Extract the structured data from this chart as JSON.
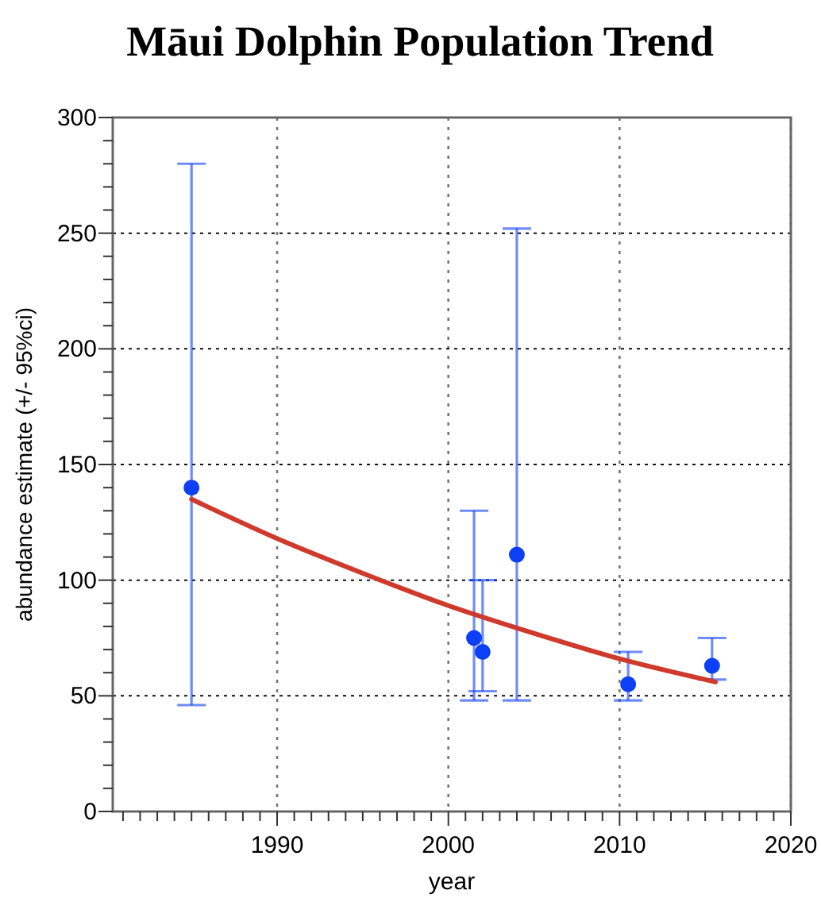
{
  "chart_data": {
    "type": "scatter",
    "title": "Māui Dolphin Population Trend",
    "xlabel": "year",
    "ylabel": "abundance estimate (+/- 95%ci)",
    "xlim": [
      1980.4,
      2020
    ],
    "ylim": [
      0,
      300
    ],
    "xticks": [
      {
        "value": 1981,
        "label": null
      },
      {
        "value": 1982,
        "label": null
      },
      {
        "value": 1983,
        "label": null
      },
      {
        "value": 1984,
        "label": null
      },
      {
        "value": 1985,
        "label": null
      },
      {
        "value": 1986,
        "label": null
      },
      {
        "value": 1987,
        "label": null
      },
      {
        "value": 1988,
        "label": null
      },
      {
        "value": 1989,
        "label": null
      },
      1990,
      {
        "value": 1991,
        "label": null
      },
      {
        "value": 1992,
        "label": null
      },
      {
        "value": 1993,
        "label": null
      },
      {
        "value": 1994,
        "label": null
      },
      {
        "value": 1995,
        "label": null
      },
      {
        "value": 1996,
        "label": null
      },
      {
        "value": 1997,
        "label": null
      },
      {
        "value": 1998,
        "label": null
      },
      {
        "value": 1999,
        "label": null
      },
      2000,
      {
        "value": 2001,
        "label": null
      },
      {
        "value": 2002,
        "label": null
      },
      {
        "value": 2003,
        "label": null
      },
      {
        "value": 2004,
        "label": null
      },
      {
        "value": 2005,
        "label": null
      },
      {
        "value": 2006,
        "label": null
      },
      {
        "value": 2007,
        "label": null
      },
      {
        "value": 2008,
        "label": null
      },
      {
        "value": 2009,
        "label": null
      },
      2010,
      {
        "value": 2011,
        "label": null
      },
      {
        "value": 2012,
        "label": null
      },
      {
        "value": 2013,
        "label": null
      },
      {
        "value": 2014,
        "label": null
      },
      {
        "value": 2015,
        "label": null
      },
      {
        "value": 2016,
        "label": null
      },
      {
        "value": 2017,
        "label": null
      },
      {
        "value": 2018,
        "label": null
      },
      {
        "value": 2019,
        "label": null
      },
      2020
    ],
    "yticks": [
      0,
      {
        "value": 10,
        "label": null
      },
      {
        "value": 20,
        "label": null
      },
      {
        "value": 30,
        "label": null
      },
      {
        "value": 40,
        "label": null
      },
      50,
      {
        "value": 60,
        "label": null
      },
      {
        "value": 70,
        "label": null
      },
      {
        "value": 80,
        "label": null
      },
      {
        "value": 90,
        "label": null
      },
      100,
      {
        "value": 110,
        "label": null
      },
      {
        "value": 120,
        "label": null
      },
      {
        "value": 130,
        "label": null
      },
      {
        "value": 140,
        "label": null
      },
      150,
      {
        "value": 160,
        "label": null
      },
      {
        "value": 170,
        "label": null
      },
      {
        "value": 180,
        "label": null
      },
      {
        "value": 190,
        "label": null
      },
      200,
      {
        "value": 210,
        "label": null
      },
      {
        "value": 220,
        "label": null
      },
      {
        "value": 230,
        "label": null
      },
      {
        "value": 240,
        "label": null
      },
      250,
      {
        "value": 260,
        "label": null
      },
      {
        "value": 270,
        "label": null
      },
      {
        "value": 280,
        "label": null
      },
      {
        "value": 290,
        "label": null
      },
      300
    ],
    "grid": true,
    "marker": "circle",
    "series": [
      {
        "color": "#0d3ff5",
        "x": [
          1985,
          2001.5,
          2002,
          2004,
          2010.5,
          2015.4
        ],
        "values": [
          140,
          75,
          69,
          111,
          55,
          63
        ],
        "errors": [
          [
            46,
            280
          ],
          [
            48,
            130
          ],
          [
            52,
            100
          ],
          [
            48,
            252
          ],
          [
            48,
            69
          ],
          [
            57,
            75
          ]
        ]
      },
      {
        "type": "line",
        "color": "#d03a2c",
        "marker": "none",
        "x": [
          1985,
          1990,
          1995,
          2000,
          2005,
          2010,
          2015.6
        ],
        "values": [
          135,
          118,
          103,
          89,
          77,
          66,
          56
        ]
      }
    ]
  }
}
